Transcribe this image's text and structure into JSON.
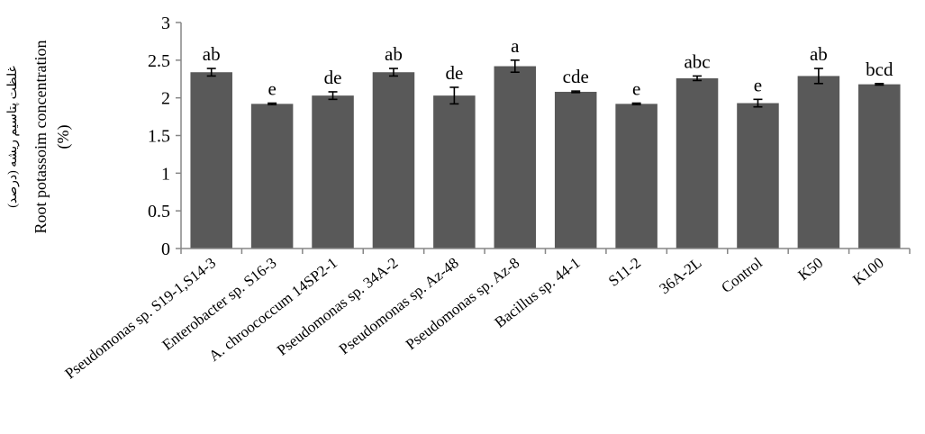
{
  "chart_data": {
    "type": "bar",
    "title": "",
    "ylabel_fa": "غلظت پتاسیم ریشه (درصد)",
    "ylabel": "Root potassoim concentration",
    "ylabel_unit": "(%)",
    "xlabel": "",
    "ylim": [
      0,
      3
    ],
    "yticks": [
      0,
      0.5,
      1,
      1.5,
      2,
      2.5,
      3
    ],
    "ytick_labels": [
      "0",
      "0.5",
      "1",
      "1.5",
      "2",
      "2.5",
      "3"
    ],
    "grid": false,
    "legend": "none",
    "bar_color": "#595959",
    "categories": [
      "Pseudomonas sp. S19-1,S14-3",
      "Enterobacter sp. S16-3",
      "A. chroococcum 14SP2-1",
      "Pseudomonas sp. 34A-2",
      "Pseudomonas sp. Az-48",
      "Pseudomonas sp. Az-8",
      "Bacillus sp. 44-1",
      "S11-2",
      "36A-2L",
      "Control",
      "K50",
      "K100"
    ],
    "values": [
      2.34,
      1.92,
      2.03,
      2.34,
      2.03,
      2.42,
      2.08,
      1.92,
      2.26,
      1.93,
      2.29,
      2.18
    ],
    "errors": [
      0.05,
      0.01,
      0.05,
      0.05,
      0.11,
      0.08,
      0.01,
      0.01,
      0.03,
      0.05,
      0.1,
      0.01
    ],
    "significance_letters": [
      "ab",
      "e",
      "de",
      "ab",
      "de",
      "a",
      "cde",
      "e",
      "abc",
      "e",
      "ab",
      "bcd"
    ]
  }
}
